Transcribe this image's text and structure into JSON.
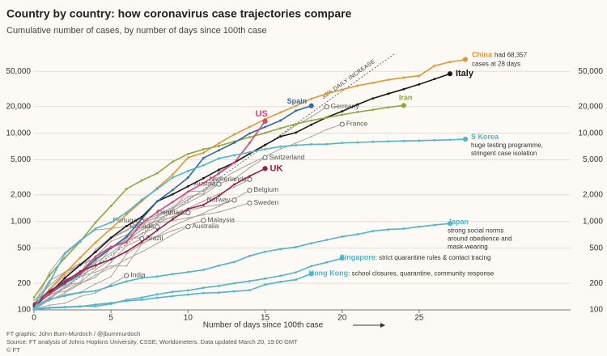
{
  "chart_data": {
    "type": "line",
    "title": "Country by country: how coronavirus case trajectories compare",
    "subtitle": "Cumulative number of cases, by number of days since 100th case",
    "x_label": "Number of days since 100th case",
    "footer": [
      "FT graphic: John Burn-Murdoch / @jburnmurdoch",
      "Source: FT analysis of Johns Hopkins University, CSSE; Worldometers. Data updated March 20, 19:00 GMT",
      "© FT"
    ],
    "log_y": true,
    "grid": true,
    "xlim": [
      0,
      28
    ],
    "xticks": [
      0,
      5,
      10,
      15,
      20,
      25
    ],
    "ylim": [
      100,
      80000
    ],
    "yticks": [
      100,
      200,
      500,
      {
        "value": 1000,
        "label": "1,000"
      },
      {
        "value": 2000,
        "label": "2,000"
      },
      {
        "value": 5000,
        "label": "5,000"
      },
      {
        "value": 10000,
        "label": "10,000"
      },
      {
        "value": 20000,
        "label": "20,000"
      },
      {
        "value": 50000,
        "label": "50,000"
      }
    ],
    "guide": {
      "label": "33% DAILY INCREASE",
      "daily_increase": 33
    },
    "x": [
      0,
      1,
      2,
      3,
      4,
      5,
      6,
      7,
      8,
      9,
      10,
      11,
      12,
      13,
      14,
      15,
      16,
      17,
      18,
      19,
      20,
      21,
      22,
      23,
      24,
      25,
      26,
      27,
      28
    ],
    "series": [
      {
        "name": "China",
        "color": "#e3982c",
        "notes": [
          "had 68,357",
          "cases at 28 days"
        ],
        "values": [
          110,
          170,
          260,
          390,
          580,
          830,
          1200,
          1700,
          2400,
          3400,
          5300,
          6000,
          7700,
          9700,
          11800,
          14400,
          17200,
          20400,
          24500,
          28000,
          31200,
          34500,
          37200,
          40200,
          42600,
          44600,
          58000,
          64000,
          68357
        ]
      },
      {
        "name": "Italy",
        "color": "#1a1a1a",
        "values": [
          110,
          152,
          229,
          322,
          453,
          655,
          888,
          1128,
          1694,
          2036,
          2502,
          3089,
          3858,
          4636,
          5883,
          7375,
          9172,
          10149,
          12462,
          15113,
          17660,
          21157,
          24747,
          27980,
          31506,
          35713,
          41035,
          47021,
          null
        ]
      },
      {
        "name": "Iran",
        "color": "#8aab3a",
        "values": [
          139,
          245,
          388,
          593,
          978,
          1501,
          2336,
          2922,
          3513,
          4747,
          5823,
          6566,
          7161,
          8042,
          9000,
          10075,
          11364,
          12729,
          13938,
          14991,
          16169,
          17361,
          18407,
          19644,
          20610,
          null,
          null,
          null,
          null
        ]
      },
      {
        "name": "Spain",
        "color": "#2a6ca6",
        "values": [
          114,
          151,
          198,
          257,
          374,
          500,
          673,
          1073,
          1695,
          2277,
          3146,
          5232,
          6391,
          7798,
          9942,
          11748,
          13910,
          17963,
          20410,
          null,
          null,
          null,
          null,
          null,
          null,
          null,
          null,
          null,
          null
        ]
      },
      {
        "name": "US",
        "color": "#e0407a",
        "values": [
          118,
          149,
          217,
          262,
          402,
          518,
          583,
          959,
          1281,
          1663,
          2179,
          2727,
          3499,
          4632,
          7786,
          13680,
          null,
          null,
          null,
          null,
          null,
          null,
          null,
          null,
          null,
          null,
          null,
          null,
          null
        ]
      },
      {
        "name": "UK",
        "color": "#9c1d47",
        "values": [
          115,
          163,
          206,
          273,
          321,
          373,
          456,
          590,
          797,
          1061,
          1391,
          1543,
          1950,
          2626,
          3269,
          3983,
          null,
          null,
          null,
          null,
          null,
          null,
          null,
          null,
          null,
          null,
          null,
          null,
          null
        ]
      },
      {
        "name": "S Korea",
        "color": "#4db6cc",
        "notes": [
          "huge testing programme,",
          "stringent case isolation"
        ],
        "values": [
          104,
          204,
          433,
          602,
          833,
          977,
          1261,
          1766,
          2337,
          3150,
          3736,
          4335,
          5186,
          5621,
          6088,
          6593,
          7041,
          7313,
          7478,
          7513,
          7755,
          7869,
          7979,
          8086,
          8162,
          8236,
          8320,
          8413,
          8565
        ]
      },
      {
        "name": "Japan",
        "color": "#4db6cc",
        "notes": [
          "strong social norms",
          "around obedience and",
          "mask-wearing"
        ],
        "values": [
          105,
          132,
          144,
          157,
          164,
          186,
          210,
          230,
          239,
          254,
          268,
          284,
          317,
          349,
          408,
          455,
          488,
          514,
          568,
          620,
          675,
          716,
          780,
          814,
          829,
          873,
          914,
          950,
          null
        ]
      },
      {
        "name": "Singapore",
        "color": "#4db6cc",
        "notes": [
          ": strict quarantine rules & contact tracing"
        ],
        "values": [
          102,
          106,
          108,
          110,
          110,
          117,
          130,
          138,
          150,
          160,
          166,
          178,
          187,
          200,
          212,
          226,
          243,
          266,
          313,
          345,
          385,
          null,
          null,
          null,
          null,
          null,
          null,
          null,
          null
        ]
      },
      {
        "name": "Hong Kong",
        "color": "#4db6cc",
        "notes": [
          ": school closures, quarantine, community response"
        ],
        "values": [
          100,
          105,
          107,
          109,
          115,
          120,
          126,
          130,
          137,
          143,
          149,
          155,
          157,
          162,
          167,
          193,
          208,
          220,
          256,
          null,
          null,
          null,
          null,
          null,
          null,
          null,
          null,
          null,
          null
        ]
      },
      {
        "name": "Germany",
        "color": "#aaa39d",
        "values": [
          130,
          159,
          196,
          262,
          482,
          670,
          799,
          1040,
          1176,
          1457,
          1908,
          2078,
          3675,
          4585,
          5795,
          7272,
          9257,
          12327,
          15320,
          19848,
          null,
          null,
          null,
          null,
          null,
          null,
          null,
          null,
          null
        ]
      },
      {
        "name": "France",
        "color": "#aaa39d",
        "values": [
          100,
          130,
          191,
          204,
          285,
          377,
          653,
          949,
          1126,
          1412,
          1784,
          2281,
          2876,
          3661,
          4499,
          5423,
          6633,
          7730,
          9134,
          10995,
          12612,
          null,
          null,
          null,
          null,
          null,
          null,
          null,
          null
        ]
      },
      {
        "name": "Switzerland",
        "color": "#aaa39d",
        "values": [
          114,
          214,
          268,
          337,
          374,
          491,
          652,
          652,
          1139,
          1359,
          2200,
          2200,
          2700,
          3028,
          4075,
          5294,
          null,
          null,
          null,
          null,
          null,
          null,
          null,
          null,
          null,
          null,
          null,
          null,
          null
        ]
      },
      {
        "name": "Netherlands",
        "color": "#aaa39d",
        "values": [
          128,
          188,
          265,
          321,
          382,
          503,
          614,
          804,
          959,
          1135,
          1413,
          1705,
          2051,
          2460,
          2994,
          null,
          null,
          null,
          null,
          null,
          null,
          null,
          null,
          null,
          null,
          null,
          null,
          null,
          null
        ]
      },
      {
        "name": "Austria",
        "color": "#aaa39d",
        "values": [
          104,
          131,
          182,
          246,
          302,
          504,
          655,
          860,
          1018,
          1332,
          1646,
          2013,
          2649,
          null,
          null,
          null,
          null,
          null,
          null,
          null,
          null,
          null,
          null,
          null,
          null,
          null,
          null,
          null,
          null
        ]
      },
      {
        "name": "Belgium",
        "color": "#aaa39d",
        "values": [
          109,
          169,
          200,
          239,
          267,
          314,
          314,
          559,
          689,
          886,
          1058,
          1243,
          1486,
          1795,
          2257,
          null,
          null,
          null,
          null,
          null,
          null,
          null,
          null,
          null,
          null,
          null,
          null,
          null,
          null
        ]
      },
      {
        "name": "Norway",
        "color": "#aaa39d",
        "values": [
          113,
          147,
          176,
          205,
          400,
          598,
          702,
          996,
          1090,
          1221,
          1333,
          1463,
          1550,
          1746,
          null,
          null,
          null,
          null,
          null,
          null,
          null,
          null,
          null,
          null,
          null,
          null,
          null,
          null,
          null
        ]
      },
      {
        "name": "Sweden",
        "color": "#aaa39d",
        "values": [
          101,
          161,
          203,
          248,
          355,
          500,
          599,
          814,
          961,
          1022,
          1103,
          1190,
          1279,
          1439,
          1623,
          null,
          null,
          null,
          null,
          null,
          null,
          null,
          null,
          null,
          null,
          null,
          null,
          null,
          null
        ]
      },
      {
        "name": "Denmark",
        "color": "#aaa39d",
        "values": [
          113,
          264,
          444,
          617,
          804,
          836,
          875,
          933,
          1024,
          1115,
          1255,
          null,
          null,
          null,
          null,
          null,
          null,
          null,
          null,
          null,
          null,
          null,
          null,
          null,
          null,
          null,
          null,
          null,
          null
        ]
      },
      {
        "name": "Malaysia",
        "color": "#aaa39d",
        "values": [
          117,
          129,
          149,
          158,
          197,
          238,
          428,
          566,
          673,
          790,
          900,
          1030,
          null,
          null,
          null,
          null,
          null,
          null,
          null,
          null,
          null,
          null,
          null,
          null,
          null,
          null,
          null,
          null,
          null
        ]
      },
      {
        "name": "Australia",
        "color": "#aaa39d",
        "values": [
          112,
          127,
          156,
          197,
          249,
          298,
          375,
          454,
          565,
          709,
          875,
          null,
          null,
          null,
          null,
          null,
          null,
          null,
          null,
          null,
          null,
          null,
          null,
          null,
          null,
          null,
          null,
          null,
          null
        ]
      },
      {
        "name": "Canada",
        "color": "#aaa39d",
        "values": [
          103,
          138,
          176,
          252,
          341,
          441,
          598,
          727,
          873,
          null,
          null,
          null,
          null,
          null,
          null,
          null,
          null,
          null,
          null,
          null,
          null,
          null,
          null,
          null,
          null,
          null,
          null,
          null,
          null
        ]
      },
      {
        "name": "Portugal",
        "color": "#aaa39d",
        "values": [
          112,
          169,
          245,
          331,
          448,
          642,
          785,
          1020,
          null,
          null,
          null,
          null,
          null,
          null,
          null,
          null,
          null,
          null,
          null,
          null,
          null,
          null,
          null,
          null,
          null,
          null,
          null,
          null,
          null
        ]
      },
      {
        "name": "Brazil",
        "color": "#aaa39d",
        "values": [
          121,
          151,
          162,
          200,
          234,
          346,
          529,
          640,
          null,
          null,
          null,
          null,
          null,
          null,
          null,
          null,
          null,
          null,
          null,
          null,
          null,
          null,
          null,
          null,
          null,
          null,
          null,
          null,
          null
        ]
      },
      {
        "name": "India",
        "color": "#aaa39d",
        "values": [
          102,
          113,
          119,
          142,
          156,
          194,
          244,
          null,
          null,
          null,
          null,
          null,
          null,
          null,
          null,
          null,
          null,
          null,
          null,
          null,
          null,
          null,
          null,
          null,
          null,
          null,
          null,
          null,
          null
        ]
      }
    ]
  }
}
